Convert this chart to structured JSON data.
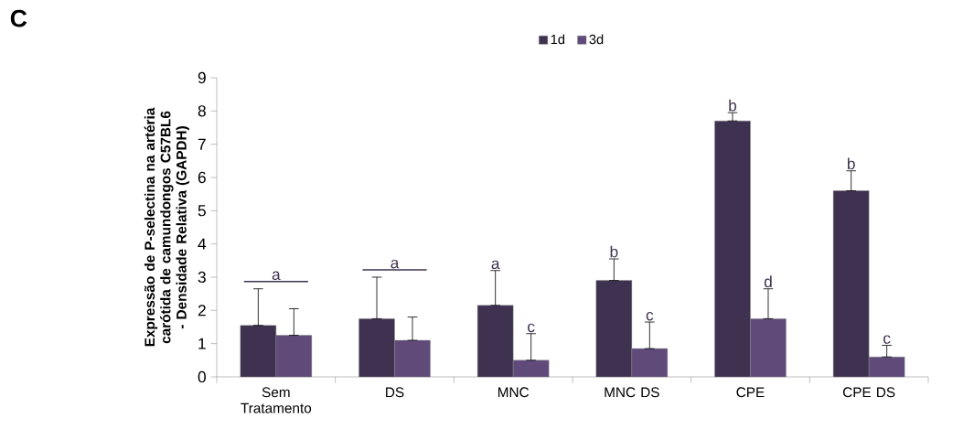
{
  "chart_data": {
    "type": "bar",
    "title": "C",
    "ylabel": "Expressão de P-selectina na artéria carótida de camundongos C57BL6 - Densidade Relativa (GAPDH)",
    "categories": [
      "Sem Tratamento",
      "DS",
      "MNC",
      "MNC DS",
      "CPE",
      "CPE DS"
    ],
    "series": [
      {
        "name": "1d",
        "color": "#3f3150",
        "values": [
          1.55,
          1.75,
          2.15,
          2.9,
          7.7,
          5.6
        ],
        "errors": [
          [
            1.55,
            2.65
          ],
          [
            1.75,
            3.0
          ],
          [
            2.15,
            3.2
          ],
          [
            2.9,
            3.55
          ],
          [
            7.7,
            7.95
          ],
          [
            5.6,
            6.2
          ]
        ]
      },
      {
        "name": "3d",
        "color": "#5f4a7a",
        "values": [
          1.25,
          1.1,
          0.5,
          0.85,
          1.75,
          0.6
        ],
        "errors": [
          [
            1.25,
            2.05
          ],
          [
            1.1,
            1.8
          ],
          [
            0.5,
            1.3
          ],
          [
            0.85,
            1.65
          ],
          [
            1.75,
            2.65
          ],
          [
            0.6,
            0.95
          ]
        ]
      }
    ],
    "ylim": [
      0,
      9
    ],
    "yticks": [
      0,
      1,
      2,
      3,
      4,
      5,
      6,
      7,
      8,
      9
    ],
    "legend": "top",
    "grid": false,
    "annotations": [
      "a",
      "a",
      "a",
      "c",
      "b",
      "c",
      "b",
      "d",
      "b",
      "c"
    ]
  }
}
